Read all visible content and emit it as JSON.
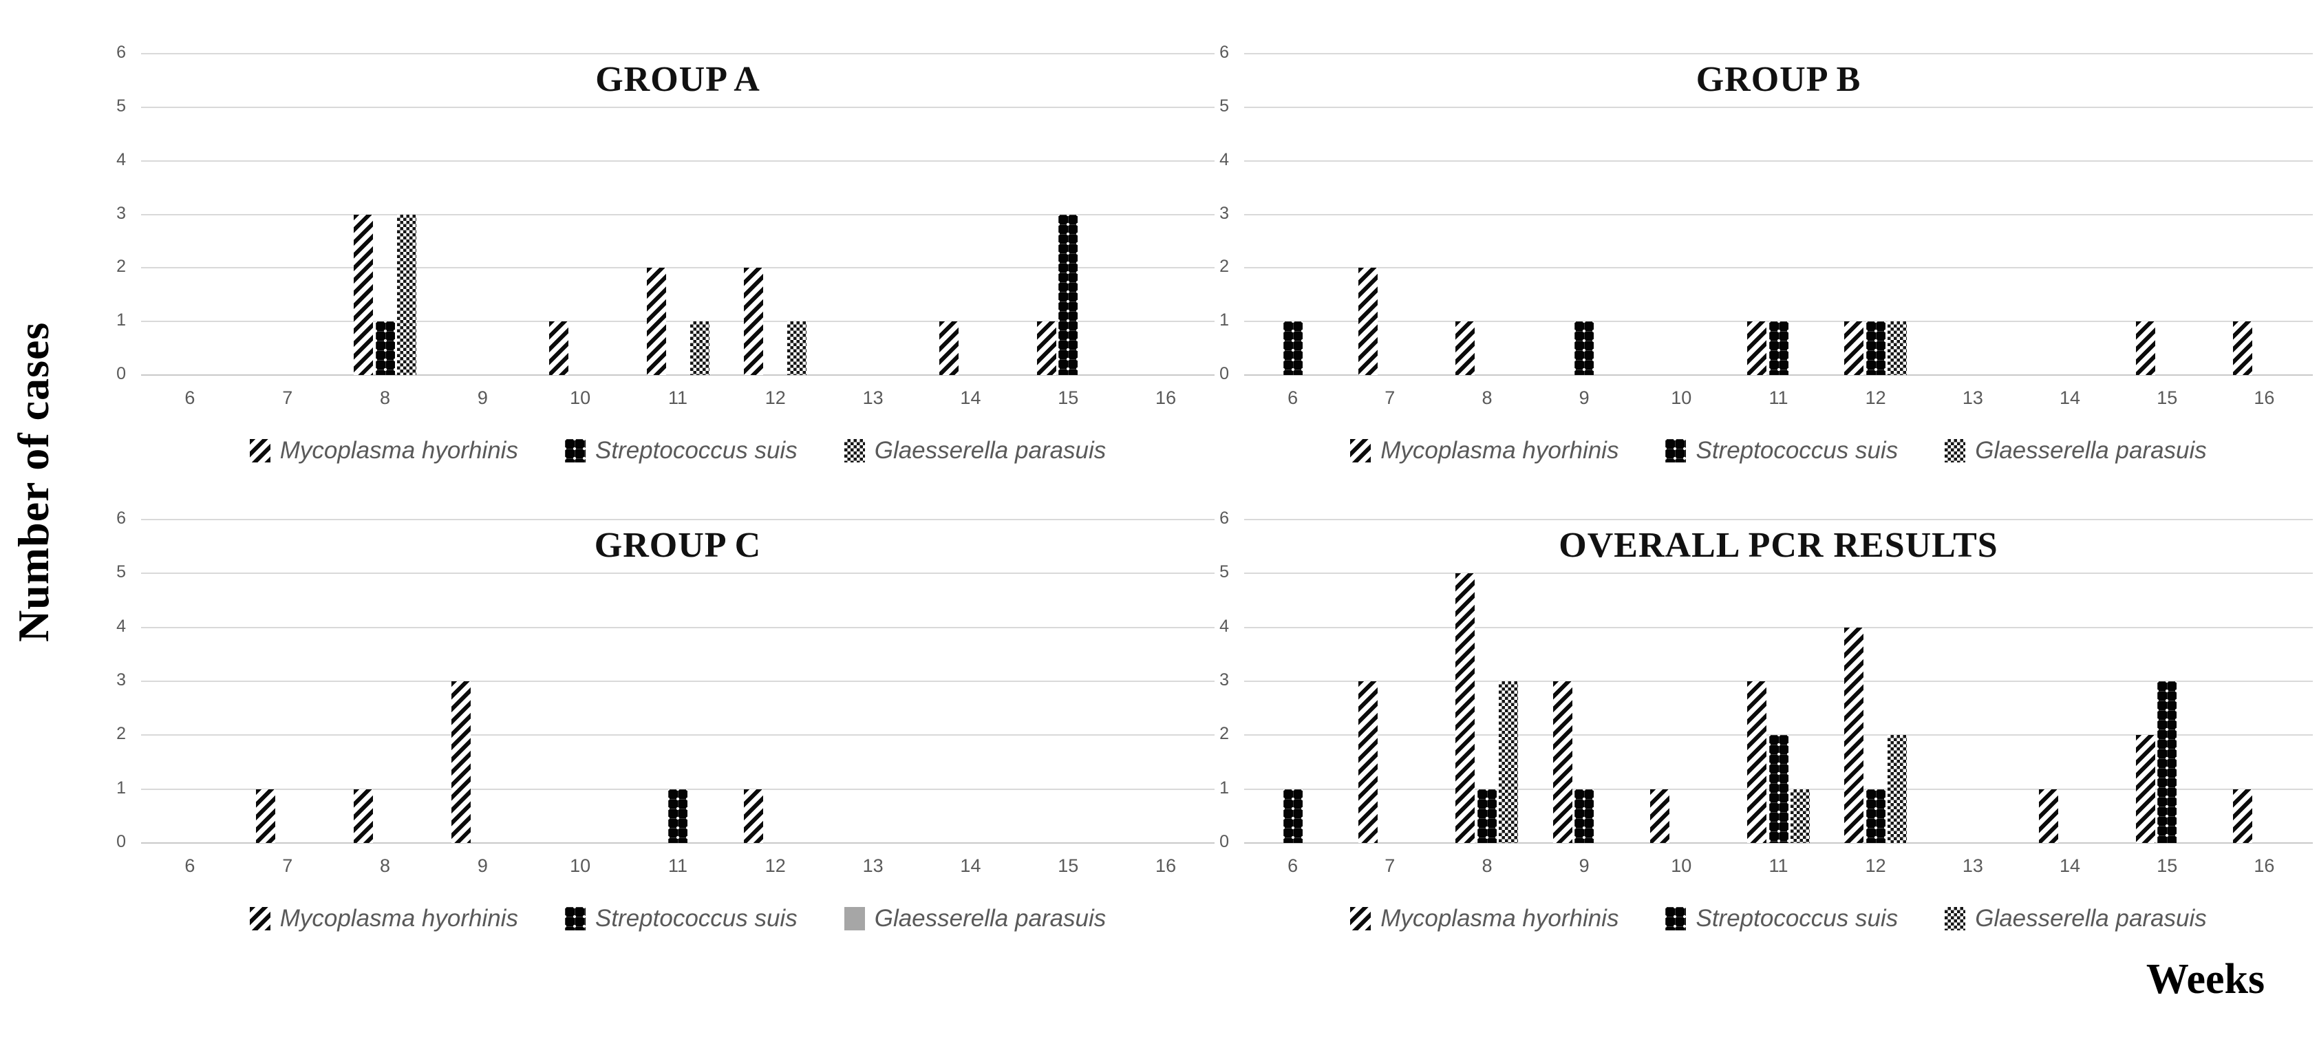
{
  "ylabel": "Number of cases",
  "xlabel": "Weeks",
  "y_ticks": [
    "0",
    "1",
    "2",
    "3",
    "4",
    "5",
    "6"
  ],
  "weeks": [
    "6",
    "7",
    "8",
    "9",
    "10",
    "11",
    "12",
    "13",
    "14",
    "15",
    "16"
  ],
  "colors": {
    "bar_black": "#0b0b0b",
    "gridline": "#d9d9d9",
    "tick_text": "#595959",
    "legend_text": "#595959",
    "title_text": "#111111",
    "solid_gray_swatch": "#a6a6a6",
    "background": "#ffffff"
  },
  "chart_data": [
    {
      "type": "bar",
      "title": "GROUP A",
      "panel": "top-left",
      "xlabel": "Weeks",
      "ylabel": "Number of cases",
      "ylim": [
        0,
        6
      ],
      "grid": true,
      "legend_position": "bottom",
      "categories": [
        6,
        7,
        8,
        9,
        10,
        11,
        12,
        13,
        14,
        15,
        16
      ],
      "series": [
        {
          "name": "Mycoplasma hyorhinis",
          "pattern": "stripes",
          "values": [
            0,
            0,
            3,
            0,
            1,
            2,
            2,
            0,
            1,
            1,
            0
          ]
        },
        {
          "name": "Streptococcus suis",
          "pattern": "dots",
          "values": [
            0,
            0,
            1,
            0,
            0,
            0,
            0,
            0,
            0,
            3,
            0
          ]
        },
        {
          "name": "Glaesserella parasuis",
          "pattern": "checker",
          "values": [
            0,
            0,
            3,
            0,
            0,
            1,
            1,
            0,
            0,
            0,
            0
          ]
        }
      ]
    },
    {
      "type": "bar",
      "title": "GROUP B",
      "panel": "top-right",
      "xlabel": "Weeks",
      "ylabel": "Number of cases",
      "ylim": [
        0,
        6
      ],
      "grid": true,
      "legend_position": "bottom",
      "categories": [
        6,
        7,
        8,
        9,
        10,
        11,
        12,
        13,
        14,
        15,
        16
      ],
      "series": [
        {
          "name": "Mycoplasma hyorhinis",
          "pattern": "stripes",
          "values": [
            0,
            2,
            1,
            0,
            0,
            1,
            1,
            0,
            0,
            1,
            1
          ]
        },
        {
          "name": "Streptococcus suis",
          "pattern": "dots",
          "values": [
            1,
            0,
            0,
            1,
            0,
            1,
            1,
            0,
            0,
            0,
            0
          ]
        },
        {
          "name": "Glaesserella parasuis",
          "pattern": "checker",
          "values": [
            0,
            0,
            0,
            0,
            0,
            0,
            1,
            0,
            0,
            0,
            0
          ]
        }
      ]
    },
    {
      "type": "bar",
      "title": "GROUP C",
      "panel": "bottom-left",
      "xlabel": "Weeks",
      "ylabel": "Number of cases",
      "ylim": [
        0,
        6
      ],
      "grid": true,
      "legend_position": "bottom",
      "categories": [
        6,
        7,
        8,
        9,
        10,
        11,
        12,
        13,
        14,
        15,
        16
      ],
      "series": [
        {
          "name": "Mycoplasma hyorhinis",
          "pattern": "stripes",
          "values": [
            0,
            1,
            1,
            3,
            0,
            0,
            1,
            0,
            0,
            0,
            0
          ]
        },
        {
          "name": "Streptococcus suis",
          "pattern": "dots",
          "values": [
            0,
            0,
            0,
            0,
            0,
            1,
            0,
            0,
            0,
            0,
            0
          ]
        },
        {
          "name": "Glaesserella parasuis",
          "pattern": "solid",
          "values": [
            0,
            0,
            0,
            0,
            0,
            0,
            0,
            0,
            0,
            0,
            0
          ]
        }
      ]
    },
    {
      "type": "bar",
      "title": "OVERALL PCR RESULTS",
      "panel": "bottom-right",
      "xlabel": "Weeks",
      "ylabel": "Number of cases",
      "ylim": [
        0,
        6
      ],
      "grid": true,
      "legend_position": "bottom",
      "categories": [
        6,
        7,
        8,
        9,
        10,
        11,
        12,
        13,
        14,
        15,
        16
      ],
      "series": [
        {
          "name": "Mycoplasma hyorhinis",
          "pattern": "stripes",
          "values": [
            0,
            3,
            5,
            3,
            1,
            3,
            4,
            0,
            1,
            2,
            1
          ]
        },
        {
          "name": "Streptococcus suis",
          "pattern": "dots",
          "values": [
            1,
            0,
            1,
            1,
            0,
            2,
            1,
            0,
            0,
            3,
            0
          ]
        },
        {
          "name": "Glaesserella parasuis",
          "pattern": "checker",
          "values": [
            0,
            0,
            3,
            0,
            0,
            1,
            2,
            0,
            0,
            0,
            0
          ]
        }
      ]
    }
  ]
}
